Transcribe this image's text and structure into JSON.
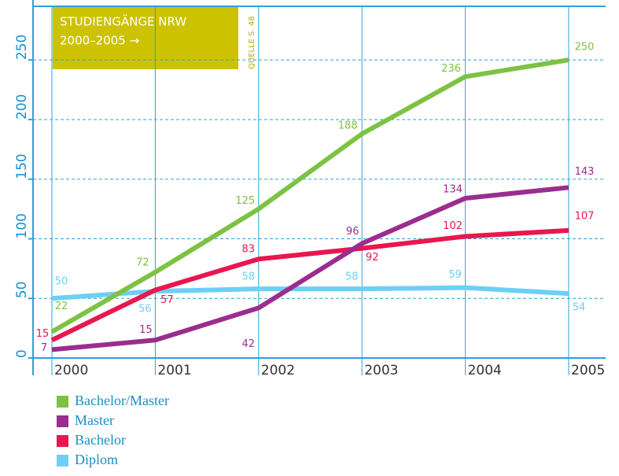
{
  "chart_data": {
    "type": "line",
    "title": "STUDIENGÄNGE NRW",
    "subtitle": "2000–2005 →",
    "annotation": "QUELLE S. 48",
    "categories": [
      "2000",
      "2001",
      "2002",
      "2003",
      "2004",
      "2005"
    ],
    "series": [
      {
        "name": "Bachelor/Master",
        "color": "#7dc242",
        "values": [
          22,
          72,
          125,
          188,
          236,
          250
        ]
      },
      {
        "name": "Master",
        "color": "#9b2d8e",
        "values": [
          7,
          15,
          42,
          96,
          134,
          143
        ]
      },
      {
        "name": "Bachelor",
        "color": "#e8174f",
        "values": [
          15,
          57,
          83,
          92,
          102,
          107
        ]
      },
      {
        "name": "Diplom",
        "color": "#6dcff6",
        "values": [
          50,
          56,
          58,
          58,
          59,
          54
        ]
      }
    ],
    "ylim": [
      0,
      295
    ],
    "yticks": [
      0,
      50,
      100,
      150,
      200,
      250
    ],
    "grid": true,
    "legend": "bottom-left"
  }
}
